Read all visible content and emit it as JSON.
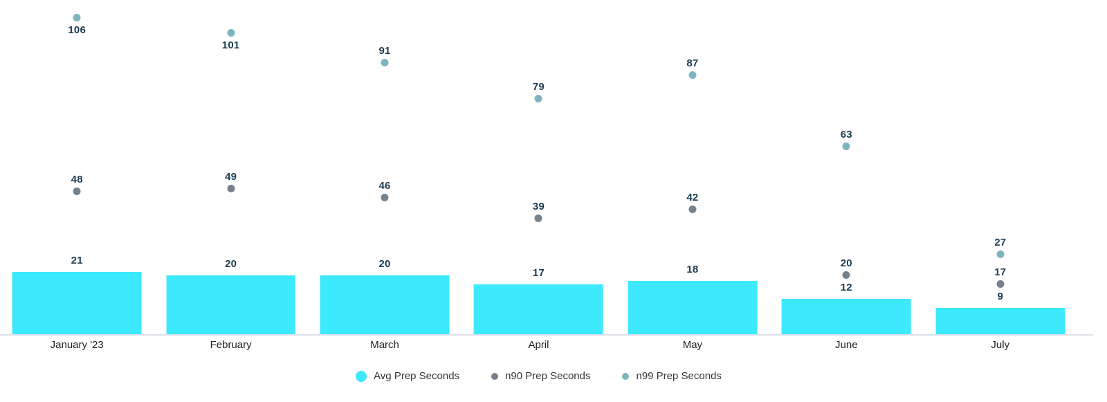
{
  "chart_data": {
    "type": "bar",
    "title": "",
    "xlabel": "",
    "ylabel": "",
    "categories": [
      "January '23",
      "February",
      "March",
      "April",
      "May",
      "June",
      "July"
    ],
    "series": [
      {
        "name": "Avg Prep Seconds",
        "type": "bar",
        "color": "#3DE9FC",
        "values": [
          21,
          20,
          20,
          17,
          18,
          12,
          9
        ]
      },
      {
        "name": "n90 Prep Seconds",
        "type": "scatter",
        "color": "#75828D",
        "values": [
          48,
          49,
          46,
          39,
          42,
          20,
          17
        ]
      },
      {
        "name": "n99 Prep Seconds",
        "type": "scatter",
        "color": "#7DB5BE",
        "values": [
          106,
          101,
          91,
          79,
          87,
          63,
          27
        ]
      }
    ],
    "ylim": [
      0,
      112
    ],
    "grid": false,
    "value_labels": true,
    "legend_position": "bottom"
  },
  "colors": {
    "value_label": "#1C3B50",
    "month_label": "#212121",
    "legend_label": "#333333",
    "axis_line": "#DDE0EA",
    "background": "#FFFFFF"
  }
}
